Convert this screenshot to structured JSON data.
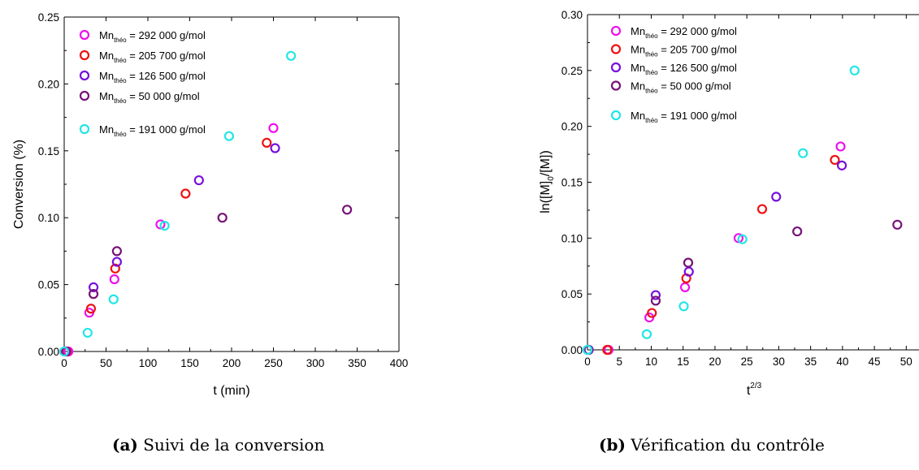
{
  "figure": {
    "captions": [
      {
        "tag": "(a)",
        "text": "Suivi de la conversion"
      },
      {
        "tag": "(b)",
        "text": "Vérification du contrôle"
      }
    ]
  },
  "chart_data": [
    {
      "type": "scatter",
      "title": "",
      "xlabel": "t (min)",
      "ylabel": "Conversion (%)",
      "xlim": [
        0,
        400
      ],
      "ylim": [
        0,
        0.25
      ],
      "xticks": [
        0,
        50,
        100,
        150,
        200,
        250,
        300,
        350,
        400
      ],
      "yticks": [
        0.0,
        0.05,
        0.1,
        0.15,
        0.2,
        0.25
      ],
      "xtick_labels": [
        "0",
        "50",
        "100",
        "150",
        "200",
        "250",
        "300",
        "350",
        "400"
      ],
      "ytick_labels": [
        "0.00",
        "0.05",
        "0.10",
        "0.15",
        "0.20",
        "0.25"
      ],
      "grid": false,
      "legend": "top-left",
      "series": [
        {
          "name": "Mn_théo = 292 000 g/mol",
          "label_main": "Mn",
          "label_sub": "théo",
          "label_rest": " = 292 000 g/mol",
          "color": "#ee11ee",
          "x": [
            5,
            30,
            60,
            115,
            250
          ],
          "y": [
            0.0,
            0.029,
            0.054,
            0.095,
            0.167
          ]
        },
        {
          "name": "Mn_théo = 205 700 g/mol",
          "label_main": "Mn",
          "label_sub": "théo",
          "label_rest": " = 205 700 g/mol",
          "color": "#ee1111",
          "x": [
            3,
            32,
            61,
            145,
            242
          ],
          "y": [
            0.0,
            0.032,
            0.062,
            0.118,
            0.156
          ]
        },
        {
          "name": "Mn_théo = 126 500 g/mol",
          "label_main": "Mn",
          "label_sub": "théo",
          "label_rest": " = 126 500 g/mol",
          "color": "#7711dd",
          "x": [
            2,
            35,
            63,
            161,
            252
          ],
          "y": [
            0.0,
            0.048,
            0.067,
            0.128,
            0.152
          ]
        },
        {
          "name": "Mn_théo = 50 000 g/mol",
          "label_main": "Mn",
          "label_sub": "théo",
          "label_rest": " = 50 000 g/mol",
          "color": "#771177",
          "x": [
            1,
            35,
            63,
            189,
            338
          ],
          "y": [
            0.0,
            0.043,
            0.075,
            0.1,
            0.106
          ]
        },
        {
          "name": "Mn_théo = 191 000 g/mol",
          "label_main": "Mn",
          "label_sub": "théo",
          "label_rest": " = 191 000 g/mol",
          "color": "#22e6e6",
          "x": [
            0,
            28,
            59,
            120,
            197,
            271
          ],
          "y": [
            0.0,
            0.014,
            0.039,
            0.094,
            0.161,
            0.221
          ]
        }
      ]
    },
    {
      "type": "scatter",
      "title": "",
      "xlabel": "t",
      "xlabel_sup": "2/3",
      "ylabel": "ln([M]",
      "ylabel_sub": "0",
      "ylabel_rest": "/[M])",
      "xlim": [
        0,
        52
      ],
      "ylim": [
        0,
        0.3
      ],
      "xticks": [
        0,
        5,
        10,
        15,
        20,
        25,
        30,
        35,
        40,
        45,
        50
      ],
      "yticks": [
        0.0,
        0.05,
        0.1,
        0.15,
        0.2,
        0.25,
        0.3
      ],
      "xtick_labels": [
        "0",
        "5",
        "10",
        "15",
        "20",
        "25",
        "30",
        "35",
        "40",
        "45",
        "50"
      ],
      "ytick_labels": [
        "0.00",
        "0.05",
        "0.10",
        "0.15",
        "0.20",
        "0.25",
        "0.30"
      ],
      "grid": false,
      "legend": "top-left",
      "series": [
        {
          "name": "Mn_théo = 292 000 g/mol",
          "label_main": "Mn",
          "label_sub": "théo",
          "label_rest": " = 292 000 g/mol",
          "color": "#ee11ee",
          "x": [
            3.3,
            9.7,
            15.3,
            23.7,
            39.7
          ],
          "y": [
            0.0,
            0.029,
            0.056,
            0.1,
            0.182
          ]
        },
        {
          "name": "Mn_théo = 205 700 g/mol",
          "label_main": "Mn",
          "label_sub": "théo",
          "label_rest": " = 205 700 g/mol",
          "color": "#ee1111",
          "x": [
            3.1,
            10.1,
            15.5,
            27.4,
            38.8
          ],
          "y": [
            0.0,
            0.033,
            0.064,
            0.126,
            0.17
          ]
        },
        {
          "name": "Mn_théo = 126 500 g/mol",
          "label_main": "Mn",
          "label_sub": "théo",
          "label_rest": " = 126 500 g/mol",
          "color": "#7711dd",
          "x": [
            0.2,
            10.7,
            15.9,
            29.6,
            39.9
          ],
          "y": [
            0.0,
            0.049,
            0.07,
            0.137,
            0.165
          ]
        },
        {
          "name": "Mn_théo = 50 000 g/mol",
          "label_main": "Mn",
          "label_sub": "théo",
          "label_rest": " = 50 000 g/mol",
          "color": "#771177",
          "x": [
            0.1,
            10.7,
            15.8,
            32.9,
            48.6
          ],
          "y": [
            0.0,
            0.044,
            0.078,
            0.106,
            0.112
          ]
        },
        {
          "name": "Mn_théo = 191 000 g/mol",
          "label_main": "Mn",
          "label_sub": "théo",
          "label_rest": " = 191 000 g/mol",
          "color": "#22e6e6",
          "x": [
            0.0,
            9.3,
            15.1,
            24.3,
            33.8,
            41.9
          ],
          "y": [
            0.0,
            0.014,
            0.039,
            0.099,
            0.176,
            0.25
          ]
        }
      ]
    }
  ]
}
